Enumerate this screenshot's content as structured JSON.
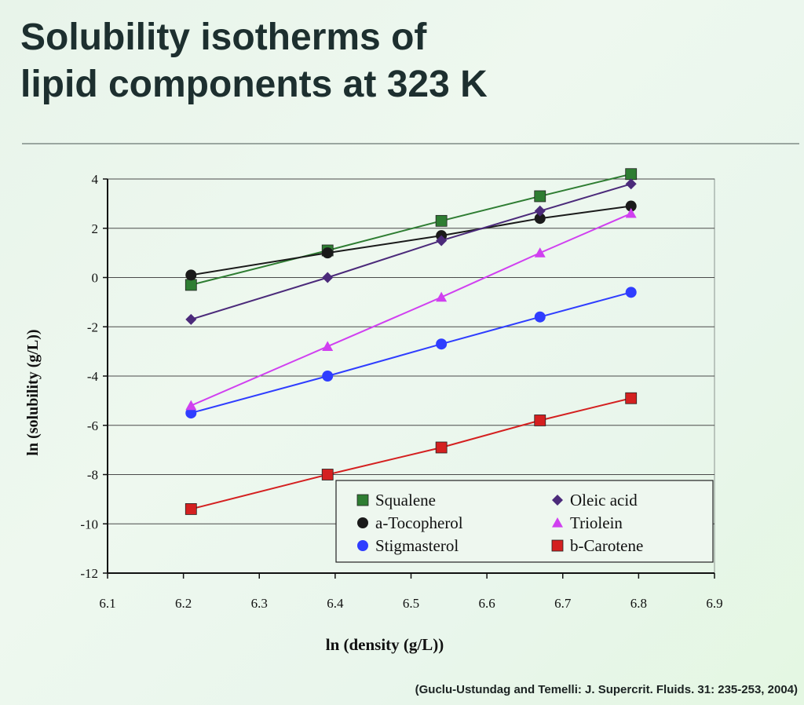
{
  "slide": {
    "title_line1": "Solubility isotherms of",
    "title_line2": "lipid components at 323 K",
    "citation": "(Guclu-Ustundag and Temelli: J. Supercrit. Fluids. 31: 235-253, 2004)"
  },
  "chart_data": {
    "type": "line",
    "xlabel": "ln (density (g/L))",
    "ylabel": "ln (solubility (g/L))",
    "xlim": [
      6.1,
      6.9
    ],
    "ylim": [
      -12,
      4
    ],
    "xticks": [
      "6.1",
      "6.2",
      "6.3",
      "6.4",
      "6.5",
      "6.6",
      "6.7",
      "6.8",
      "6.9"
    ],
    "yticks": [
      "4",
      "2",
      "0",
      "-2",
      "-4",
      "-6",
      "-8",
      "-10",
      "-12"
    ],
    "grid": "horizontal",
    "legend_placement": "bottom-right",
    "series": [
      {
        "name": "Squalene",
        "color": "#2e7d32",
        "marker": "square",
        "x": [
          6.21,
          6.39,
          6.54,
          6.67,
          6.79
        ],
        "y": [
          -0.3,
          1.1,
          2.3,
          3.3,
          4.2
        ]
      },
      {
        "name": "a-Tocopherol",
        "color": "#1a1a1a",
        "marker": "circle",
        "x": [
          6.21,
          6.39,
          6.54,
          6.67,
          6.79
        ],
        "y": [
          0.1,
          1.0,
          1.7,
          2.4,
          2.9
        ]
      },
      {
        "name": "Stigmasterol",
        "color": "#2f3dff",
        "marker": "circle",
        "x": [
          6.21,
          6.39,
          6.54,
          6.67,
          6.79
        ],
        "y": [
          -5.5,
          -4.0,
          -2.7,
          -1.6,
          -0.6
        ]
      },
      {
        "name": "Oleic acid",
        "color": "#4b2a7a",
        "marker": "diamond",
        "x": [
          6.21,
          6.39,
          6.54,
          6.67,
          6.79
        ],
        "y": [
          -1.7,
          0.0,
          1.5,
          2.7,
          3.8
        ]
      },
      {
        "name": "Triolein",
        "color": "#d040f0",
        "marker": "triangle",
        "x": [
          6.21,
          6.39,
          6.54,
          6.67,
          6.79
        ],
        "y": [
          -5.2,
          -2.8,
          -0.8,
          1.0,
          2.6
        ]
      },
      {
        "name": "b-Carotene",
        "color": "#d42020",
        "marker": "square",
        "x": [
          6.21,
          6.39,
          6.54,
          6.67,
          6.79
        ],
        "y": [
          -9.4,
          -8.0,
          -6.9,
          -5.8,
          -4.9
        ]
      }
    ]
  }
}
